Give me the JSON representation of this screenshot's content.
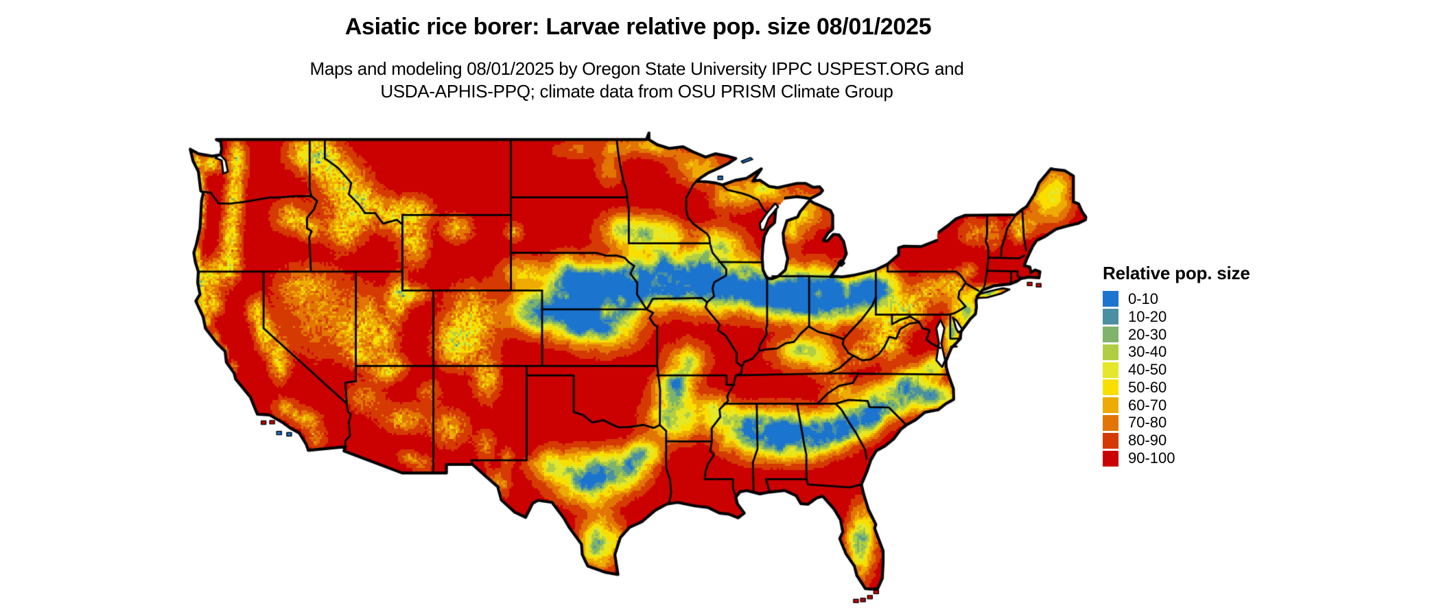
{
  "title": "Asiatic rice borer: Larvae relative pop. size 08/01/2025",
  "subtitle": {
    "line1": "Maps and modeling 08/01/2025 by Oregon State University IPPC USPEST.ORG and",
    "line2": "USDA-APHIS-PPQ; climate data from OSU PRISM Climate Group"
  },
  "legend": {
    "title": "Relative pop. size",
    "items": [
      {
        "label": "0-10",
        "color": "#1B74CE"
      },
      {
        "label": "10-20",
        "color": "#4A90A2"
      },
      {
        "label": "20-30",
        "color": "#7DB36A"
      },
      {
        "label": "30-40",
        "color": "#B1CE43"
      },
      {
        "label": "40-50",
        "color": "#E4E828"
      },
      {
        "label": "50-60",
        "color": "#F8DF00"
      },
      {
        "label": "60-70",
        "color": "#EEAB04"
      },
      {
        "label": "70-80",
        "color": "#E27504"
      },
      {
        "label": "80-90",
        "color": "#D53A02"
      },
      {
        "label": "90-100",
        "color": "#CB0101"
      }
    ]
  },
  "map": {
    "region": "Contiguous United States",
    "kind": "raster choropleth of relative population size (0-100)",
    "background": "#FFFFFF",
    "boundary_color": "#000000"
  }
}
